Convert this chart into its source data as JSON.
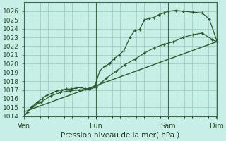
{
  "xlabel": "Pression niveau de la mer( hPa )",
  "ylim": [
    1014,
    1027
  ],
  "yticks": [
    1014,
    1015,
    1016,
    1017,
    1018,
    1019,
    1020,
    1021,
    1022,
    1023,
    1024,
    1025,
    1026
  ],
  "xtick_labels": [
    "Ven",
    "Lun",
    "Sam",
    "Dim"
  ],
  "xtick_positions": [
    0,
    3,
    6,
    8
  ],
  "background_color": "#c8eee8",
  "grid_color": "#9ecfbf",
  "line_color": "#2d5a2d",
  "series1_x": [
    0,
    0.15,
    0.35,
    0.55,
    0.75,
    0.95,
    1.15,
    1.35,
    1.55,
    1.75,
    1.95,
    2.15,
    2.35,
    2.55,
    2.75,
    2.95,
    3.15,
    3.35,
    3.55,
    3.75,
    3.95,
    4.15,
    4.4,
    4.6,
    4.8,
    5.0,
    5.2,
    5.4,
    5.6,
    5.8,
    6.0,
    6.3,
    6.6,
    7.0,
    7.4,
    7.7,
    8.0
  ],
  "series1_y": [
    1014.0,
    1014.5,
    1015.1,
    1015.6,
    1016.0,
    1016.4,
    1016.6,
    1016.9,
    1017.0,
    1017.1,
    1017.1,
    1017.2,
    1017.3,
    1017.1,
    1017.2,
    1017.5,
    1019.2,
    1019.7,
    1020.0,
    1020.6,
    1021.0,
    1021.5,
    1023.0,
    1023.8,
    1023.9,
    1025.0,
    1025.2,
    1025.3,
    1025.6,
    1025.8,
    1026.0,
    1026.1,
    1026.0,
    1025.9,
    1025.8,
    1025.1,
    1022.7
  ],
  "series2_x": [
    0,
    0.3,
    0.7,
    1.1,
    1.5,
    1.9,
    2.3,
    2.7,
    3.0,
    3.4,
    3.8,
    4.2,
    4.6,
    5.0,
    5.4,
    5.8,
    6.2,
    6.6,
    7.0,
    7.4,
    7.8,
    8.0
  ],
  "series2_y": [
    1014.0,
    1015.0,
    1015.6,
    1016.3,
    1016.7,
    1016.9,
    1017.0,
    1017.1,
    1017.3,
    1018.3,
    1019.1,
    1019.9,
    1020.5,
    1021.2,
    1021.8,
    1022.2,
    1022.5,
    1023.0,
    1023.3,
    1023.5,
    1022.8,
    1022.5
  ],
  "series3_x": [
    0,
    8.0
  ],
  "series3_y": [
    1014.5,
    1022.5
  ],
  "vlines_x": [
    0,
    3.0,
    6.0,
    8.0
  ],
  "minor_x_step": 0.333,
  "total_x": 8.0,
  "figsize": [
    3.2,
    2.0
  ],
  "dpi": 100
}
